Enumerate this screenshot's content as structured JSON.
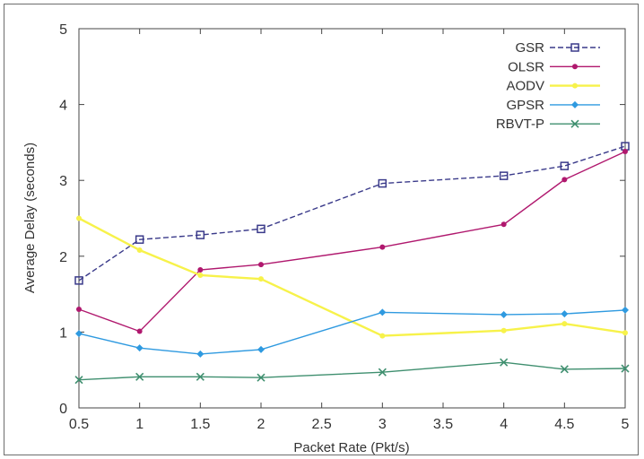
{
  "chart_data": {
    "type": "line",
    "xlabel": "Packet Rate (Pkt/s)",
    "ylabel": "Average Delay (seconds)",
    "xlim": [
      0.5,
      5
    ],
    "ylim": [
      0,
      5
    ],
    "xticks": [
      0.5,
      1,
      1.5,
      2,
      2.5,
      3,
      3.5,
      4,
      4.5,
      5
    ],
    "xtick_labels": [
      "0.5",
      "1",
      "1.5",
      "2",
      "2.5",
      "3",
      "3.5",
      "4",
      "4.5",
      "5"
    ],
    "yticks": [
      0,
      1,
      2,
      3,
      4,
      5
    ],
    "ytick_labels": [
      "0",
      "1",
      "2",
      "3",
      "4",
      "5"
    ],
    "grid": false,
    "legend_position": "top-right",
    "series": [
      {
        "name": "GSR",
        "color": "#3a3a8a",
        "dash": "6,3",
        "marker": "square",
        "points": [
          [
            0.5,
            1.68
          ],
          [
            1,
            2.22
          ],
          [
            1.5,
            2.28
          ],
          [
            2,
            2.36
          ],
          [
            3,
            2.96
          ],
          [
            4,
            3.06
          ],
          [
            4.5,
            3.19
          ],
          [
            5,
            3.45
          ]
        ]
      },
      {
        "name": "OLSR",
        "color": "#b0186e",
        "dash": "",
        "marker": "dot",
        "points": [
          [
            0.5,
            1.3
          ],
          [
            1,
            1.01
          ],
          [
            1.5,
            1.82
          ],
          [
            2,
            1.89
          ],
          [
            3,
            2.12
          ],
          [
            4,
            2.42
          ],
          [
            4.5,
            3.01
          ],
          [
            5,
            3.38
          ]
        ]
      },
      {
        "name": "AODV",
        "color": "#f7f24a",
        "dash": "",
        "marker": "dot",
        "points": [
          [
            0.5,
            2.5
          ],
          [
            1,
            2.08
          ],
          [
            1.5,
            1.75
          ],
          [
            2,
            1.7
          ],
          [
            3,
            0.95
          ],
          [
            4,
            1.02
          ],
          [
            4.5,
            1.11
          ],
          [
            5,
            0.99
          ]
        ]
      },
      {
        "name": "GPSR",
        "color": "#2f9ae0",
        "dash": "",
        "marker": "diamond",
        "points": [
          [
            0.5,
            0.98
          ],
          [
            1,
            0.79
          ],
          [
            1.5,
            0.71
          ],
          [
            2,
            0.77
          ],
          [
            3,
            1.26
          ],
          [
            4,
            1.23
          ],
          [
            4.5,
            1.24
          ],
          [
            5,
            1.29
          ]
        ]
      },
      {
        "name": "RBVT-P",
        "color": "#3f8f6f",
        "dash": "",
        "marker": "x",
        "points": [
          [
            0.5,
            0.37
          ],
          [
            1,
            0.41
          ],
          [
            1.5,
            0.41
          ],
          [
            2,
            0.4
          ],
          [
            3,
            0.47
          ],
          [
            4,
            0.6
          ],
          [
            4.5,
            0.51
          ],
          [
            5,
            0.52
          ]
        ]
      }
    ]
  }
}
